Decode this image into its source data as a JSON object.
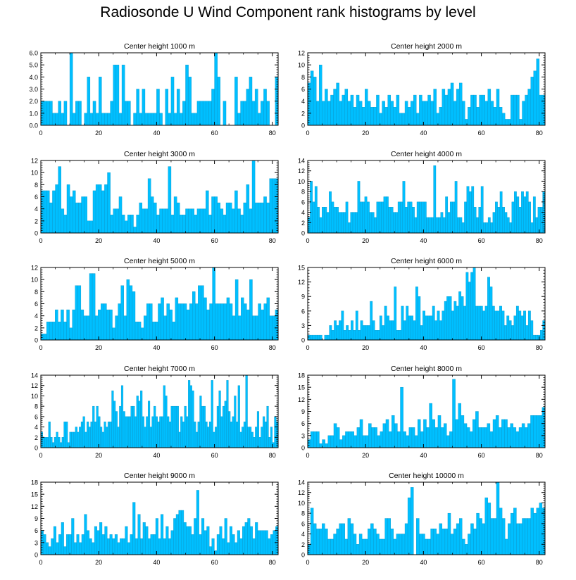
{
  "title": "Radiosonde U Wind Component rank histograms by level",
  "colors": {
    "bar": "#00bfff",
    "bar_edge": "#0a96c8",
    "axis": "#000000"
  },
  "chart_data": [
    {
      "type": "bar",
      "title": "Center height 1000 m",
      "ylim": [
        0,
        6
      ],
      "yticks": [
        0,
        1,
        2,
        3,
        4,
        5,
        6
      ],
      "ytick_labels": [
        "0.0",
        "1.0",
        "2.0",
        "3.0",
        "4.0",
        "5.0",
        "6.0"
      ],
      "xlim": [
        0,
        82
      ],
      "xticks": [
        0,
        20,
        40,
        60,
        80
      ],
      "values": [
        2,
        2,
        2,
        2,
        1,
        1,
        2,
        1,
        2,
        0,
        6,
        1,
        2,
        2,
        0,
        1,
        4,
        1,
        2,
        1,
        4,
        1,
        1,
        1,
        2,
        5,
        5,
        1,
        5,
        2,
        2,
        0,
        1,
        3,
        1,
        3,
        1,
        1,
        1,
        1,
        3,
        1,
        0,
        3,
        1,
        4,
        1,
        3,
        1,
        2,
        5,
        4,
        1,
        1,
        2,
        2,
        2,
        2,
        2,
        3,
        6,
        4,
        0,
        2,
        0,
        0,
        0,
        4,
        1,
        2,
        2,
        3,
        4,
        2,
        3,
        1,
        2,
        3,
        2,
        0,
        0,
        4
      ]
    },
    {
      "type": "bar",
      "title": "Center height 2000 m",
      "ylim": [
        0,
        12
      ],
      "yticks": [
        0,
        2,
        4,
        6,
        8,
        10,
        12
      ],
      "ytick_labels": [
        "0",
        "2",
        "4",
        "6",
        "8",
        "10",
        "12"
      ],
      "xlim": [
        0,
        82
      ],
      "xticks": [
        0,
        20,
        40,
        60,
        80
      ],
      "values": [
        7,
        9,
        8,
        4,
        10,
        4,
        6,
        4,
        5,
        6,
        7,
        4,
        5,
        6,
        4,
        5,
        3,
        5,
        4,
        3,
        6,
        4,
        3,
        3,
        5,
        2,
        4,
        3,
        5,
        4,
        3,
        5,
        2,
        2,
        4,
        3,
        4,
        5,
        2,
        5,
        4,
        4,
        5,
        4,
        6,
        2,
        3,
        6,
        5,
        6,
        7,
        4,
        6,
        7,
        4,
        1,
        3,
        5,
        5,
        3,
        5,
        5,
        4,
        6,
        4,
        3,
        6,
        3,
        2,
        1,
        1,
        5,
        5,
        5,
        1,
        4,
        5,
        6,
        8,
        9,
        11,
        5,
        5
      ]
    },
    {
      "type": "bar",
      "title": "Center height 3000 m",
      "ylim": [
        0,
        12
      ],
      "yticks": [
        0,
        2,
        4,
        6,
        8,
        10,
        12
      ],
      "ytick_labels": [
        "0",
        "2",
        "4",
        "6",
        "8",
        "10",
        "12"
      ],
      "xlim": [
        0,
        82
      ],
      "xticks": [
        0,
        20,
        40,
        60,
        80
      ],
      "values": [
        7,
        7,
        7,
        5,
        7,
        8,
        11,
        4,
        3,
        8,
        6,
        7,
        5,
        5,
        6,
        6,
        2,
        2,
        7,
        8,
        8,
        7,
        8,
        10,
        3,
        4,
        4,
        6,
        3,
        2,
        3,
        3,
        1,
        3,
        5,
        4,
        4,
        9,
        6,
        5,
        3,
        4,
        4,
        4,
        11,
        3,
        6,
        5,
        3,
        3,
        4,
        4,
        4,
        3,
        4,
        4,
        4,
        7,
        3,
        6,
        6,
        5,
        4,
        3,
        5,
        5,
        4,
        7,
        4,
        3,
        5,
        8,
        4,
        12,
        5,
        5,
        5,
        6,
        5,
        9,
        9,
        9
      ]
    },
    {
      "type": "bar",
      "title": "Center height 4000 m",
      "ylim": [
        0,
        14
      ],
      "yticks": [
        0,
        2,
        4,
        6,
        8,
        10,
        12,
        14
      ],
      "ytick_labels": [
        "0",
        "2",
        "4",
        "6",
        "8",
        "10",
        "12",
        "14"
      ],
      "xlim": [
        0,
        82
      ],
      "xticks": [
        0,
        20,
        40,
        60,
        80
      ],
      "values": [
        3,
        10,
        6,
        9,
        5,
        3,
        5,
        5,
        4,
        8,
        6,
        5,
        5,
        4,
        4,
        4,
        6,
        2,
        4,
        4,
        4,
        10,
        6,
        6,
        7,
        6,
        4,
        4,
        3,
        6,
        6,
        6,
        7,
        7,
        5,
        5,
        4,
        4,
        6,
        6,
        10,
        5,
        6,
        6,
        5,
        3,
        6,
        6,
        6,
        6,
        3,
        3,
        3,
        13,
        3,
        3,
        4,
        3,
        7,
        4,
        6,
        6,
        10,
        3,
        3,
        2,
        6,
        9,
        8,
        9,
        5,
        3,
        5,
        9,
        2,
        2,
        3,
        2,
        4,
        6,
        5,
        8,
        5,
        4,
        3,
        2,
        6,
        8,
        7,
        5,
        8,
        7,
        8,
        6,
        2,
        7,
        3,
        5,
        5,
        8
      ]
    },
    {
      "type": "bar",
      "title": "Center height 5000 m",
      "ylim": [
        0,
        12
      ],
      "yticks": [
        0,
        2,
        4,
        6,
        8,
        10,
        12
      ],
      "ytick_labels": [
        "0",
        "2",
        "4",
        "6",
        "8",
        "10",
        "12"
      ],
      "xlim": [
        0,
        82
      ],
      "xticks": [
        0,
        20,
        40,
        60,
        80
      ],
      "values": [
        1,
        1,
        3,
        3,
        3,
        5,
        3,
        5,
        3,
        5,
        2,
        5,
        9,
        9,
        5,
        4,
        4,
        11,
        11,
        4,
        5,
        6,
        6,
        5,
        5,
        2,
        4,
        6,
        9,
        4,
        10,
        9,
        8,
        3,
        3,
        2,
        4,
        6,
        6,
        3,
        3,
        6,
        7,
        4,
        6,
        5,
        3,
        7,
        6,
        6,
        6,
        5,
        6,
        8,
        6,
        9,
        9,
        7,
        5,
        6,
        12,
        6,
        6,
        6,
        6,
        7,
        6,
        4,
        10,
        4,
        7,
        6,
        5,
        10,
        4,
        4,
        6,
        5,
        6,
        7,
        4,
        4,
        5
      ]
    },
    {
      "type": "bar",
      "title": "Center height 6000 m",
      "ylim": [
        0,
        15
      ],
      "yticks": [
        0,
        3,
        6,
        9,
        12,
        15
      ],
      "ytick_labels": [
        "0",
        "3",
        "6",
        "9",
        "12",
        "15"
      ],
      "xlim": [
        0,
        82
      ],
      "xticks": [
        0,
        20,
        40,
        60,
        80
      ],
      "values": [
        1,
        1,
        1,
        1,
        1,
        1,
        0,
        1,
        1,
        3,
        2,
        4,
        3,
        4,
        6,
        2,
        3,
        2,
        4,
        2,
        6,
        2,
        4,
        3,
        3,
        3,
        8,
        4,
        2,
        2,
        5,
        3,
        7,
        5,
        4,
        4,
        11,
        2,
        2,
        7,
        4,
        7,
        5,
        5,
        4,
        11,
        9,
        3,
        6,
        5,
        5,
        5,
        7,
        4,
        6,
        4,
        6,
        8,
        9,
        9,
        6,
        8,
        7,
        10,
        9,
        7,
        14,
        12,
        14,
        15,
        7,
        7,
        7,
        6,
        7,
        13,
        11,
        7,
        6,
        6,
        7,
        6,
        3,
        5,
        4,
        3,
        5,
        7,
        6,
        5,
        6,
        3,
        6,
        4,
        1,
        1,
        1,
        2,
        4
      ]
    },
    {
      "type": "bar",
      "title": "Center height 7000 m",
      "ylim": [
        0,
        14
      ],
      "yticks": [
        0,
        2,
        4,
        6,
        8,
        10,
        12,
        14
      ],
      "ytick_labels": [
        "0",
        "2",
        "4",
        "6",
        "8",
        "10",
        "12",
        "14"
      ],
      "xlim": [
        0,
        82
      ],
      "xticks": [
        0,
        20,
        40,
        60,
        80
      ],
      "values": [
        3,
        2,
        2,
        2,
        5,
        2,
        1,
        2,
        3,
        2,
        1,
        2,
        5,
        5,
        1,
        3,
        3,
        3,
        4,
        3,
        4,
        5,
        6,
        3,
        5,
        4,
        5,
        8,
        5,
        8,
        6,
        4,
        3,
        5,
        4,
        5,
        5,
        11,
        9,
        7,
        4,
        8,
        12,
        7,
        6,
        6,
        6,
        8,
        8,
        6,
        10,
        9,
        11,
        6,
        4,
        6,
        9,
        4,
        6,
        8,
        6,
        5,
        6,
        6,
        12,
        10,
        6,
        5,
        8,
        8,
        8,
        8,
        3,
        6,
        5,
        8,
        6,
        13,
        12,
        11,
        5,
        3,
        5,
        10,
        8,
        8,
        5,
        4,
        5,
        13,
        3,
        4,
        8,
        11,
        6,
        8,
        9,
        13,
        7,
        5,
        6,
        10,
        5,
        12,
        3,
        4,
        5,
        14,
        4,
        4,
        3,
        2,
        4,
        7,
        2,
        4,
        6,
        5,
        8,
        2,
        4,
        1,
        6,
        5
      ]
    },
    {
      "type": "bar",
      "title": "Center height 8000 m",
      "ylim": [
        0,
        18
      ],
      "yticks": [
        0,
        3,
        6,
        9,
        12,
        15,
        18
      ],
      "ytick_labels": [
        "0",
        "3",
        "6",
        "9",
        "12",
        "15",
        "18"
      ],
      "xlim": [
        0,
        82
      ],
      "xticks": [
        0,
        20,
        40,
        60,
        80
      ],
      "values": [
        2,
        4,
        4,
        4,
        1,
        2,
        1,
        3,
        3,
        6,
        5,
        2,
        3,
        4,
        4,
        4,
        3,
        5,
        7,
        3,
        3,
        6,
        5,
        5,
        3,
        4,
        6,
        7,
        4,
        8,
        6,
        4,
        15,
        4,
        3,
        5,
        5,
        3,
        7,
        4,
        7,
        5,
        11,
        7,
        5,
        8,
        5,
        6,
        3,
        4,
        17,
        7,
        11,
        8,
        6,
        5,
        4,
        7,
        9,
        5,
        5,
        5,
        6,
        4,
        7,
        8,
        5,
        7,
        7,
        5,
        6,
        5,
        4,
        5,
        6,
        5,
        6,
        8,
        8,
        8,
        8,
        10
      ]
    },
    {
      "type": "bar",
      "title": "Center height 9000 m",
      "ylim": [
        0,
        18
      ],
      "yticks": [
        0,
        3,
        6,
        9,
        12,
        15,
        18
      ],
      "ytick_labels": [
        "0",
        "3",
        "6",
        "9",
        "12",
        "15",
        "18"
      ],
      "xlim": [
        0,
        82
      ],
      "xticks": [
        0,
        20,
        40,
        60,
        80
      ],
      "values": [
        6,
        5,
        3,
        2,
        4,
        7,
        3,
        5,
        8,
        2,
        5,
        5,
        9,
        3,
        5,
        3,
        5,
        10,
        6,
        4,
        3,
        7,
        6,
        8,
        5,
        7,
        4,
        5,
        4,
        5,
        3,
        4,
        4,
        7,
        3,
        5,
        13,
        4,
        10,
        4,
        8,
        7,
        4,
        5,
        5,
        9,
        4,
        10,
        4,
        7,
        4,
        6,
        9,
        10,
        11,
        11,
        8,
        7,
        7,
        5,
        9,
        16,
        5,
        9,
        6,
        7,
        2,
        4,
        1,
        5,
        7,
        4,
        9,
        3,
        7,
        5,
        3,
        6,
        4,
        7,
        8,
        9,
        7,
        4,
        8,
        6,
        6,
        6,
        6,
        4,
        5,
        6,
        7
      ]
    },
    {
      "type": "bar",
      "title": "Center height 10000 m",
      "ylim": [
        0,
        14
      ],
      "yticks": [
        0,
        2,
        4,
        6,
        8,
        10,
        12,
        14
      ],
      "ytick_labels": [
        "0",
        "2",
        "4",
        "6",
        "8",
        "10",
        "12",
        "14"
      ],
      "xlim": [
        0,
        82
      ],
      "xticks": [
        0,
        20,
        40,
        60,
        80
      ],
      "values": [
        2,
        9,
        6,
        5,
        5,
        6,
        5,
        3,
        3,
        4,
        5,
        6,
        6,
        3,
        7,
        6,
        4,
        2,
        4,
        3,
        3,
        5,
        6,
        5,
        4,
        3,
        3,
        7,
        7,
        5,
        3,
        4,
        4,
        4,
        6,
        11,
        13,
        0,
        7,
        4,
        4,
        3,
        3,
        5,
        5,
        4,
        6,
        5,
        5,
        8,
        4,
        5,
        6,
        7,
        3,
        2,
        4,
        6,
        5,
        8,
        7,
        6,
        11,
        10,
        7,
        7,
        14,
        9,
        7,
        3,
        6,
        8,
        9,
        6,
        6,
        7,
        7,
        7,
        9,
        8,
        9,
        10,
        9
      ]
    }
  ]
}
